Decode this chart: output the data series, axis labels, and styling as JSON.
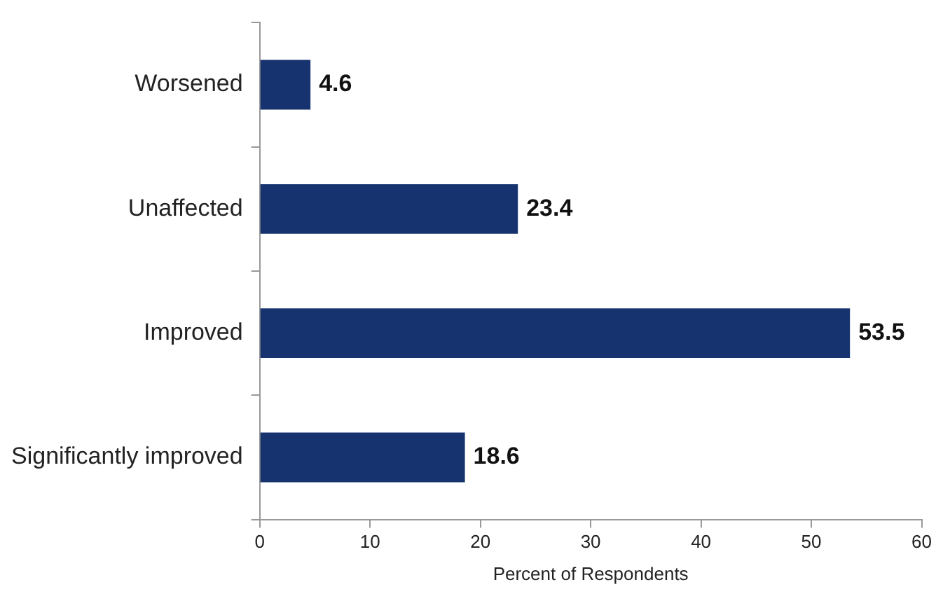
{
  "chart_data": {
    "type": "bar",
    "orientation": "horizontal",
    "xlabel": "Percent of Respondents",
    "categories": [
      "Worsened",
      "Unaffected",
      "Improved",
      "Significantly improved"
    ],
    "values": [
      4.6,
      23.4,
      53.5,
      18.6
    ],
    "color": "#17336f",
    "xlim": [
      0,
      60
    ],
    "xticks": [
      0,
      10,
      20,
      30,
      40,
      50,
      60
    ],
    "grid": false,
    "legend": false,
    "data_labels": true
  }
}
